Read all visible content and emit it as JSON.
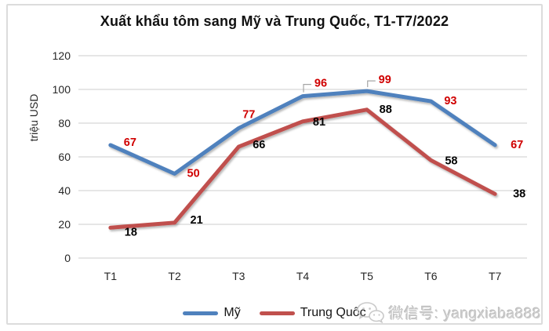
{
  "title": "Xuất khẩu tôm sang Mỹ và Trung Quốc, T1-T7/2022",
  "chart_data": {
    "type": "line",
    "categories": [
      "T1",
      "T2",
      "T3",
      "T4",
      "T5",
      "T6",
      "T7"
    ],
    "series": [
      {
        "name": "Mỹ",
        "color": "#4f81bd",
        "label_color": "#d00000",
        "values": [
          67,
          50,
          77,
          96,
          99,
          93,
          67
        ]
      },
      {
        "name": "Trung Quốc",
        "color": "#c0504d",
        "label_color": "#000000",
        "values": [
          18,
          21,
          66,
          81,
          88,
          58,
          38
        ]
      }
    ],
    "title": "Xuất khẩu tôm sang Mỹ và Trung Quốc, T1-T7/2022",
    "xlabel": "",
    "ylabel": "triệu USD",
    "ylim": [
      0,
      120
    ],
    "yticks": [
      0,
      20,
      40,
      60,
      80,
      100,
      120
    ],
    "grid": true,
    "legend_position": "bottom",
    "data_labels": true
  },
  "watermark": {
    "icon": "wechat-icon",
    "text": "微信号: yangxiaba888"
  },
  "colors": {
    "grid": "#d6d6d6",
    "tick_text": "#262626",
    "axis_title_text": "#262626",
    "frame_border": "#dcdcdc",
    "callout_leader": "#a6a6a6",
    "watermark_text": "#cbcbcb"
  }
}
